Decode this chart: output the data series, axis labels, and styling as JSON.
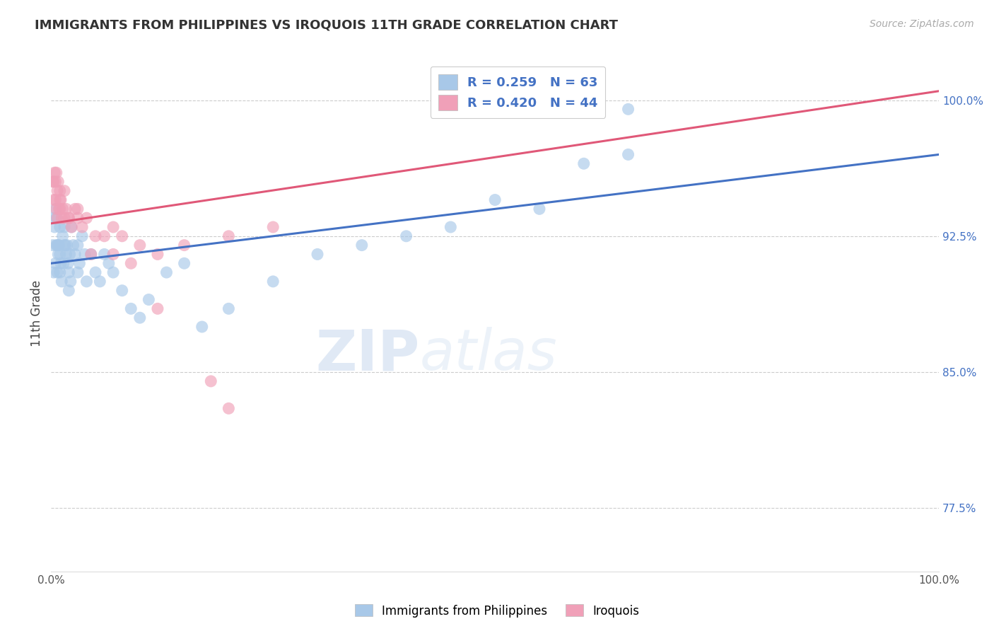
{
  "title": "IMMIGRANTS FROM PHILIPPINES VS IROQUOIS 11TH GRADE CORRELATION CHART",
  "source_text": "Source: ZipAtlas.com",
  "ylabel": "11th Grade",
  "legend_label_1": "Immigrants from Philippines",
  "legend_label_2": "Iroquois",
  "R1": 0.259,
  "N1": 63,
  "R2": 0.42,
  "N2": 44,
  "color_blue": "#a8c8e8",
  "color_pink": "#f0a0b8",
  "color_blue_line": "#4472c4",
  "color_pink_line": "#e05878",
  "color_text_blue": "#4472c4",
  "color_right_axis": "#4472c4",
  "xmin": 0.0,
  "xmax": 100.0,
  "ymin": 74.0,
  "ymax": 102.5,
  "yticks_right": [
    77.5,
    85.0,
    92.5,
    100.0
  ],
  "blue_line_y0": 91.0,
  "blue_line_y100": 97.0,
  "pink_line_y0": 93.2,
  "pink_line_y100": 100.5,
  "blue_x": [
    0.2,
    0.3,
    0.3,
    0.4,
    0.5,
    0.5,
    0.6,
    0.6,
    0.7,
    0.7,
    0.8,
    0.8,
    0.9,
    1.0,
    1.0,
    1.0,
    1.1,
    1.2,
    1.3,
    1.4,
    1.5,
    1.5,
    1.6,
    1.7,
    1.8,
    1.9,
    2.0,
    2.0,
    2.1,
    2.2,
    2.3,
    2.5,
    2.7,
    3.0,
    3.0,
    3.2,
    3.5,
    3.8,
    4.0,
    4.5,
    5.0,
    5.5,
    6.0,
    6.5,
    7.0,
    8.0,
    9.0,
    10.0,
    11.0,
    13.0,
    15.0,
    17.0,
    20.0,
    25.0,
    30.0,
    35.0,
    40.0,
    45.0,
    50.0,
    55.0,
    60.0,
    65.0,
    65.0
  ],
  "blue_y": [
    92.0,
    93.5,
    90.5,
    93.0,
    94.0,
    91.0,
    93.5,
    92.0,
    92.0,
    90.5,
    92.0,
    91.5,
    92.0,
    93.0,
    91.5,
    90.5,
    91.0,
    90.0,
    92.5,
    91.0,
    93.0,
    92.0,
    92.0,
    91.5,
    92.0,
    91.0,
    90.5,
    89.5,
    91.5,
    90.0,
    93.0,
    92.0,
    91.5,
    92.0,
    90.5,
    91.0,
    92.5,
    91.5,
    90.0,
    91.5,
    90.5,
    90.0,
    91.5,
    91.0,
    90.5,
    89.5,
    88.5,
    88.0,
    89.0,
    90.5,
    91.0,
    87.5,
    88.5,
    90.0,
    91.5,
    92.0,
    92.5,
    93.0,
    94.5,
    94.0,
    96.5,
    97.0,
    99.5
  ],
  "pink_x": [
    0.2,
    0.3,
    0.3,
    0.4,
    0.5,
    0.5,
    0.6,
    0.6,
    0.7,
    0.7,
    0.8,
    0.9,
    1.0,
    1.0,
    1.1,
    1.2,
    1.3,
    1.5,
    1.7,
    2.0,
    2.3,
    2.7,
    3.0,
    3.5,
    4.0,
    5.0,
    6.0,
    7.0,
    8.0,
    10.0,
    12.0,
    15.0,
    20.0,
    25.0,
    1.0,
    1.5,
    2.0,
    3.0,
    4.5,
    7.0,
    9.0,
    12.0,
    18.0,
    20.0
  ],
  "pink_y": [
    95.5,
    94.5,
    95.5,
    96.0,
    95.5,
    94.5,
    96.0,
    94.0,
    95.0,
    93.5,
    95.5,
    94.0,
    95.0,
    94.5,
    94.5,
    93.5,
    94.0,
    93.5,
    94.0,
    93.5,
    93.0,
    94.0,
    93.5,
    93.0,
    93.5,
    92.5,
    92.5,
    93.0,
    92.5,
    92.0,
    91.5,
    92.0,
    92.5,
    93.0,
    94.0,
    95.0,
    93.5,
    94.0,
    91.5,
    91.5,
    91.0,
    88.5,
    84.5,
    83.0
  ]
}
